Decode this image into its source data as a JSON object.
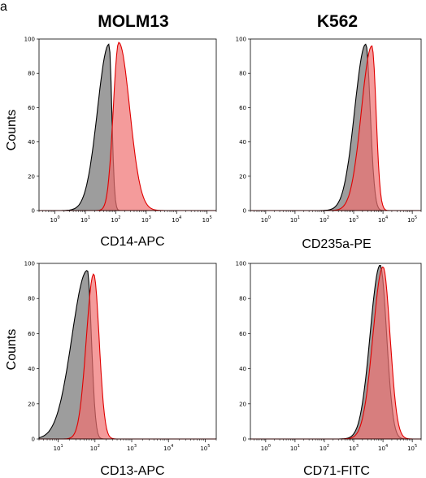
{
  "panel_letter": "a",
  "column_titles": [
    "MOLM13",
    "K562"
  ],
  "row_ylabels": [
    "Counts",
    "Counts"
  ],
  "colors": {
    "control_fill": "#8c8c8c",
    "control_line": "#000000",
    "stain_fill": "#f07070",
    "stain_line": "#e00000"
  },
  "chart_data": [
    {
      "type": "area",
      "title": "",
      "xlabel": "CD14-APC",
      "ylabel": "Counts",
      "xscale": "log",
      "xlim": [
        0.3,
        200000
      ],
      "ylim": [
        0,
        100
      ],
      "yticks": [
        0,
        20,
        40,
        60,
        80,
        100
      ],
      "xticks": [
        1,
        10,
        100,
        1000,
        10000,
        100000
      ],
      "xticklabels": [
        "10^0",
        "10^1",
        "10^2",
        "10^3",
        "10^4",
        "10^5"
      ],
      "series": [
        {
          "role": "control",
          "peak_x": 60,
          "peak_y": 97,
          "left_sigma": 0.38,
          "right_sigma": 0.09
        },
        {
          "role": "stained",
          "peak_x": 125,
          "peak_y": 98,
          "left_sigma": 0.18,
          "right_sigma": 0.36
        }
      ]
    },
    {
      "type": "area",
      "title": "",
      "xlabel": "CD235a-PE",
      "ylabel": "",
      "xscale": "log",
      "xlim": [
        0.3,
        200000
      ],
      "ylim": [
        0,
        100
      ],
      "yticks": [
        0,
        20,
        40,
        60,
        80,
        100
      ],
      "xticks": [
        1,
        10,
        100,
        1000,
        10000,
        100000
      ],
      "xticklabels": [
        "10^0",
        "10^1",
        "10^2",
        "10^3",
        "10^4",
        "10^5"
      ],
      "series": [
        {
          "role": "control",
          "peak_x": 2600,
          "peak_y": 97,
          "left_sigma": 0.38,
          "right_sigma": 0.15
        },
        {
          "role": "stained",
          "peak_x": 4200,
          "peak_y": 96,
          "left_sigma": 0.36,
          "right_sigma": 0.14
        }
      ]
    },
    {
      "type": "area",
      "title": "",
      "xlabel": "CD13-APC",
      "ylabel": "Counts",
      "xscale": "log",
      "xlim": [
        3,
        200000
      ],
      "ylim": [
        0,
        100
      ],
      "yticks": [
        0,
        20,
        40,
        60,
        80,
        100
      ],
      "xticks": [
        10,
        100,
        1000,
        10000,
        100000
      ],
      "xticklabels": [
        "10^1",
        "10^2",
        "10^3",
        "10^4",
        "10^5"
      ],
      "series": [
        {
          "role": "control",
          "peak_x": 62,
          "peak_y": 96,
          "left_sigma": 0.42,
          "right_sigma": 0.11
        },
        {
          "role": "stained",
          "peak_x": 92,
          "peak_y": 94,
          "left_sigma": 0.2,
          "right_sigma": 0.15
        }
      ]
    },
    {
      "type": "area",
      "title": "",
      "xlabel": "CD71-FITC",
      "ylabel": "",
      "xscale": "log",
      "xlim": [
        0.3,
        200000
      ],
      "ylim": [
        0,
        100
      ],
      "yticks": [
        0,
        20,
        40,
        60,
        80,
        100
      ],
      "xticks": [
        1,
        10,
        100,
        1000,
        10000,
        100000
      ],
      "xticklabels": [
        "10^0",
        "10^1",
        "10^2",
        "10^3",
        "10^4",
        "10^5"
      ],
      "series": [
        {
          "role": "control",
          "peak_x": 8000,
          "peak_y": 99,
          "left_sigma": 0.34,
          "right_sigma": 0.22
        },
        {
          "role": "stained",
          "peak_x": 10000,
          "peak_y": 98,
          "left_sigma": 0.34,
          "right_sigma": 0.24
        }
      ]
    }
  ]
}
